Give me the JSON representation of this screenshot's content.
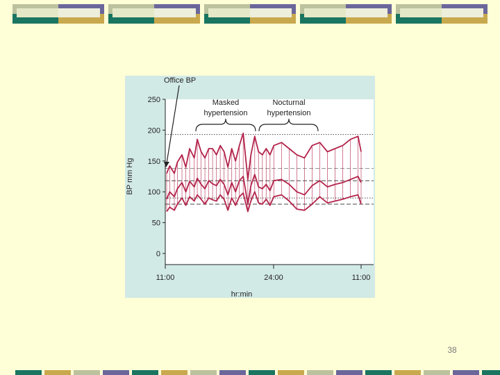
{
  "slide": {
    "page_number": "38"
  },
  "colors": {
    "background": "#FFFFD7",
    "teal": "#1A7561",
    "purple": "#6B679B",
    "mustard": "#C9A94E",
    "sage": "#BDC29E",
    "figure_bg": "#D2EAE6",
    "series": "#B3234A"
  },
  "chart_data": {
    "type": "line",
    "title": "",
    "xlabel": "hr:min",
    "ylabel": "BP mm Hg",
    "ylim": [
      0,
      250
    ],
    "yticks": [
      0,
      50,
      100,
      150,
      200,
      250
    ],
    "xticks": [
      "11:00",
      "24:00",
      "11:00"
    ],
    "annotations": {
      "office_bp": "Office BP",
      "masked": [
        "Masked",
        "hypertension"
      ],
      "nocturnal": [
        "Nocturnal",
        "hypertension"
      ]
    },
    "reference_lines": [
      {
        "y": 193,
        "style": "dotted"
      },
      {
        "y": 138,
        "style": "dashed-light"
      },
      {
        "y": 118,
        "style": "dashed"
      },
      {
        "y": 90,
        "style": "dotted"
      },
      {
        "y": 80,
        "style": "dashed"
      }
    ],
    "series": [
      {
        "role": "systolic",
        "x": [
          0,
          0.4,
          1,
          1.4,
          2,
          2.5,
          3,
          3.6,
          4,
          4.5,
          5,
          5.5,
          6,
          6.5,
          7,
          7.5,
          8,
          8.5,
          9,
          9.5,
          10,
          10.6,
          11,
          11.5,
          12,
          12.5,
          13,
          13.5,
          14,
          15,
          16,
          17,
          18,
          19,
          20,
          21,
          22,
          23,
          24,
          25,
          25.4
        ],
        "values": [
          130,
          142,
          130,
          148,
          160,
          140,
          170,
          155,
          185,
          165,
          155,
          170,
          170,
          160,
          175,
          165,
          140,
          170,
          150,
          175,
          195,
          120,
          160,
          190,
          165,
          160,
          170,
          160,
          175,
          180,
          170,
          160,
          155,
          175,
          180,
          165,
          170,
          175,
          185,
          190,
          165
        ]
      },
      {
        "role": "mean",
        "x": [
          0,
          0.4,
          1,
          1.4,
          2,
          2.5,
          3,
          3.6,
          4,
          4.5,
          5,
          5.5,
          6,
          6.5,
          7,
          7.5,
          8,
          8.5,
          9,
          9.5,
          10,
          10.6,
          11,
          11.5,
          12,
          12.5,
          13,
          13.5,
          14,
          15,
          16,
          17,
          18,
          19,
          20,
          21,
          22,
          23,
          24,
          25,
          25.4
        ],
        "values": [
          88,
          100,
          92,
          105,
          115,
          100,
          117,
          108,
          122,
          112,
          105,
          118,
          113,
          110,
          120,
          112,
          95,
          115,
          100,
          118,
          125,
          80,
          110,
          128,
          108,
          105,
          112,
          102,
          118,
          120,
          112,
          100,
          95,
          110,
          118,
          108,
          112,
          115,
          120,
          125,
          115
        ]
      },
      {
        "role": "diastolic",
        "x": [
          0,
          0.4,
          1,
          1.4,
          2,
          2.5,
          3,
          3.6,
          4,
          4.5,
          5,
          5.5,
          6,
          6.5,
          7,
          7.5,
          8,
          8.5,
          9,
          9.5,
          10,
          10.6,
          11,
          11.5,
          12,
          12.5,
          13,
          13.5,
          14,
          15,
          16,
          17,
          18,
          19,
          20,
          21,
          22,
          23,
          24,
          25,
          25.4
        ],
        "values": [
          68,
          75,
          70,
          80,
          90,
          78,
          92,
          85,
          95,
          88,
          80,
          90,
          87,
          85,
          95,
          88,
          70,
          90,
          78,
          92,
          98,
          68,
          85,
          100,
          82,
          80,
          88,
          78,
          92,
          95,
          85,
          72,
          70,
          80,
          92,
          82,
          85,
          88,
          92,
          95,
          80
        ]
      }
    ]
  }
}
